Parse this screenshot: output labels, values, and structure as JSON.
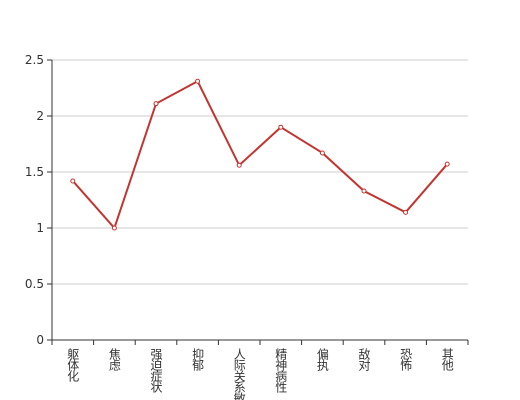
{
  "chart_data": {
    "type": "line",
    "categories": [
      "躯体化",
      "焦虑",
      "强迫症状",
      "抑郁",
      "人际关系敏感",
      "精神病性",
      "偏执",
      "敌对",
      "恐怖",
      "其他"
    ],
    "series": [
      {
        "color": "#c23531",
        "values": [
          1.42,
          1.0,
          2.11,
          2.31,
          1.56,
          1.9,
          1.67,
          1.33,
          1.14,
          1.57
        ]
      }
    ],
    "ylim": [
      0,
      2.5
    ],
    "yticks": [
      0,
      0.5,
      1,
      1.5,
      2,
      2.5
    ],
    "grid": true
  }
}
